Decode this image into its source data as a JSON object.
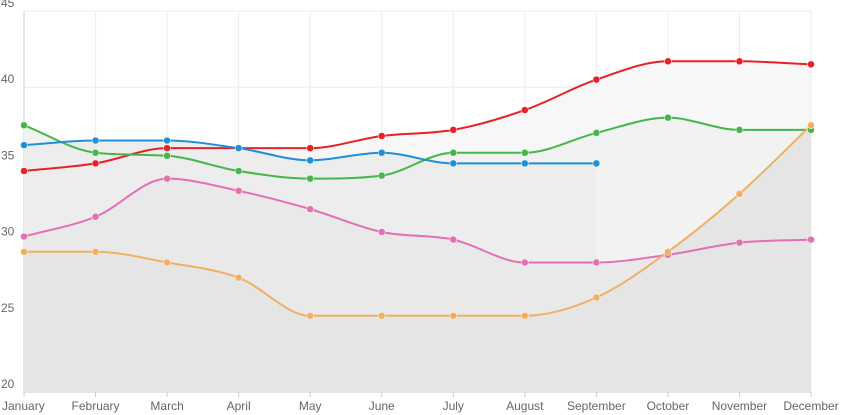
{
  "chart_data": {
    "type": "line",
    "categories": [
      "January",
      "February",
      "March",
      "April",
      "May",
      "June",
      "July",
      "August",
      "September",
      "October",
      "November",
      "December"
    ],
    "ylim": [
      20,
      45
    ],
    "yticks": [
      20,
      25,
      30,
      35,
      40,
      45
    ],
    "grid": true,
    "legend": "none",
    "series": [
      {
        "color": "#e8202a",
        "fill": "#f7f7f7",
        "values": [
          34.5,
          35,
          36,
          36,
          36,
          36.8,
          37.2,
          38.5,
          40.5,
          41.7,
          41.7,
          41.5
        ]
      },
      {
        "color": "#45b649",
        "fill": "#f2f2f2",
        "values": [
          37.5,
          35.7,
          35.5,
          34.5,
          34,
          34.2,
          35.7,
          35.7,
          37,
          38,
          37.2,
          37.2
        ]
      },
      {
        "color": "#1f8fd6",
        "fill": "#ededed",
        "values": [
          36.2,
          36.5,
          36.5,
          36,
          35.2,
          35.7,
          35,
          35,
          35,
          null,
          null,
          null
        ]
      },
      {
        "color": "#e56fb4",
        "fill": "#e9e9e9",
        "values": [
          30.2,
          31.5,
          34,
          33.2,
          32,
          30.5,
          30,
          28.5,
          28.5,
          29,
          29.8,
          30
        ]
      },
      {
        "color": "#f0b063",
        "fill": "#e5e5e5",
        "values": [
          29.2,
          29.2,
          28.5,
          27.5,
          25,
          25,
          25,
          25,
          26.2,
          29.2,
          33,
          37.5
        ]
      }
    ]
  }
}
